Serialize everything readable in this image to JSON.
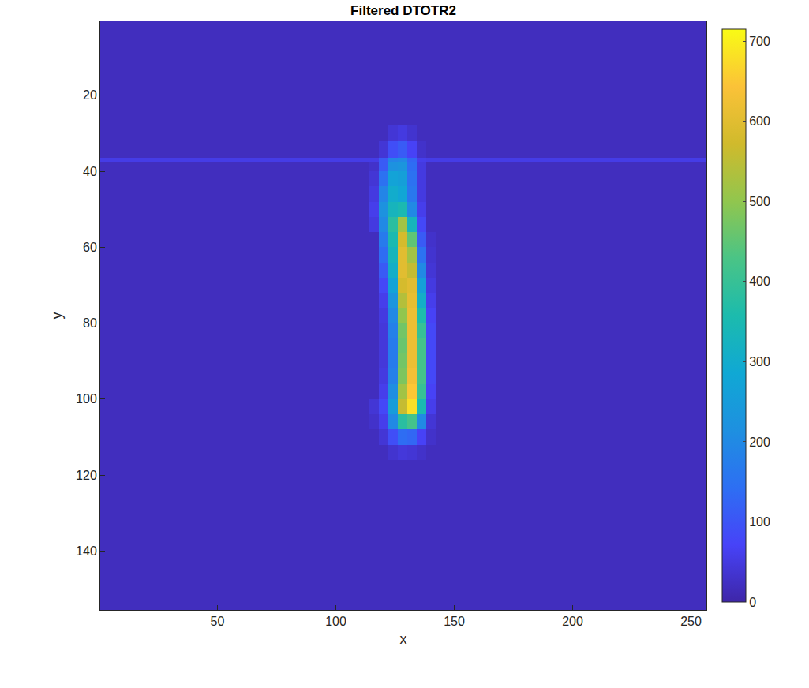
{
  "chart_data": {
    "type": "heatmap",
    "title": "Filtered DTOTR2",
    "x_label": "x",
    "y_label": "y",
    "xlim": [
      0.5,
      256.5
    ],
    "ylim": [
      155.5,
      0.5
    ],
    "xticks": [
      50,
      100,
      150,
      200,
      250
    ],
    "yticks": [
      20,
      40,
      60,
      80,
      100,
      120,
      140
    ],
    "x_edges": [
      0.5,
      106,
      110,
      114,
      118,
      122,
      126,
      130,
      134,
      138,
      142,
      146,
      150,
      154,
      256.5
    ],
    "y_edges": [
      0.5,
      28,
      32,
      36.5,
      37.5,
      40,
      44,
      48,
      52,
      56,
      60,
      64,
      68,
      72,
      76,
      80,
      84,
      88,
      92,
      96,
      100,
      104,
      108,
      112,
      116,
      155.5
    ],
    "cells": [
      [
        20,
        20,
        20,
        20,
        20,
        20,
        20,
        20,
        20,
        20,
        20,
        20,
        20,
        20
      ],
      [
        20,
        20,
        20,
        20,
        20,
        40,
        50,
        35,
        20,
        20,
        20,
        20,
        20,
        20
      ],
      [
        20,
        20,
        20,
        20,
        40,
        90,
        110,
        70,
        30,
        20,
        20,
        20,
        20,
        20
      ],
      [
        55,
        55,
        55,
        55,
        110,
        190,
        200,
        130,
        60,
        55,
        55,
        55,
        55,
        55
      ],
      [
        20,
        20,
        20,
        30,
        110,
        220,
        230,
        140,
        50,
        20,
        20,
        20,
        20,
        20
      ],
      [
        20,
        20,
        20,
        40,
        150,
        270,
        260,
        150,
        50,
        20,
        20,
        20,
        20,
        20
      ],
      [
        20,
        20,
        20,
        50,
        190,
        300,
        280,
        160,
        50,
        20,
        20,
        20,
        20,
        20
      ],
      [
        20,
        20,
        20,
        60,
        220,
        330,
        350,
        200,
        60,
        20,
        20,
        20,
        20,
        20
      ],
      [
        20,
        20,
        20,
        50,
        200,
        380,
        520,
        330,
        80,
        20,
        20,
        20,
        20,
        20
      ],
      [
        20,
        20,
        20,
        20,
        170,
        350,
        580,
        450,
        110,
        30,
        20,
        20,
        20,
        20
      ],
      [
        20,
        20,
        20,
        20,
        140,
        330,
        600,
        520,
        150,
        35,
        20,
        20,
        20,
        20
      ],
      [
        20,
        20,
        20,
        20,
        110,
        310,
        600,
        560,
        200,
        40,
        20,
        20,
        20,
        20
      ],
      [
        20,
        20,
        20,
        20,
        80,
        270,
        580,
        600,
        260,
        50,
        20,
        20,
        20,
        20
      ],
      [
        20,
        20,
        20,
        20,
        60,
        230,
        540,
        610,
        310,
        60,
        20,
        20,
        20,
        20
      ],
      [
        20,
        20,
        20,
        20,
        50,
        200,
        500,
        620,
        360,
        70,
        20,
        20,
        20,
        20
      ],
      [
        20,
        20,
        20,
        20,
        45,
        180,
        470,
        620,
        400,
        80,
        20,
        20,
        20,
        20
      ],
      [
        20,
        20,
        20,
        20,
        45,
        170,
        460,
        620,
        420,
        80,
        20,
        20,
        20,
        20
      ],
      [
        20,
        20,
        20,
        20,
        45,
        170,
        470,
        620,
        420,
        80,
        20,
        20,
        20,
        20
      ],
      [
        20,
        20,
        20,
        20,
        50,
        180,
        480,
        630,
        420,
        80,
        20,
        20,
        20,
        20
      ],
      [
        20,
        20,
        20,
        20,
        60,
        210,
        520,
        650,
        400,
        70,
        20,
        20,
        20,
        20
      ],
      [
        20,
        20,
        20,
        40,
        80,
        250,
        560,
        680,
        350,
        60,
        20,
        20,
        20,
        20
      ],
      [
        20,
        20,
        20,
        30,
        60,
        200,
        380,
        420,
        200,
        40,
        20,
        20,
        20,
        20
      ],
      [
        20,
        20,
        20,
        20,
        40,
        90,
        140,
        130,
        70,
        30,
        20,
        20,
        20,
        20
      ],
      [
        20,
        20,
        20,
        20,
        20,
        35,
        45,
        40,
        30,
        20,
        20,
        20,
        20,
        20
      ],
      [
        20,
        20,
        20,
        20,
        20,
        20,
        20,
        20,
        20,
        20,
        20,
        20,
        20,
        20
      ]
    ],
    "colorbar_range": [
      0,
      715
    ],
    "colorbar_ticks": [
      0,
      100,
      200,
      300,
      400,
      500,
      600,
      700
    ]
  }
}
